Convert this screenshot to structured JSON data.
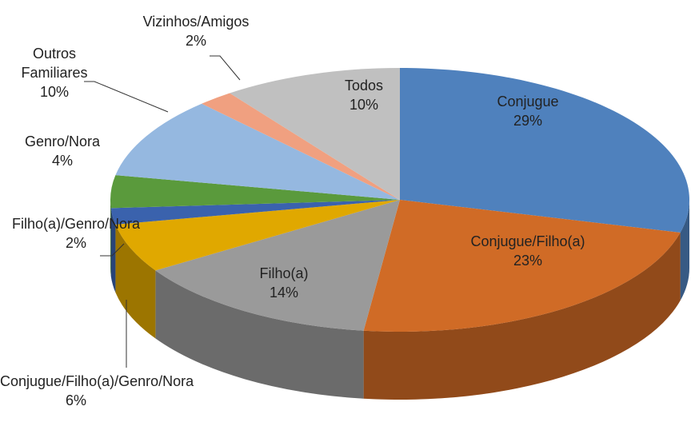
{
  "chart_data": {
    "type": "pie",
    "categories": [
      "Conjugue",
      "Conjugue/Filho(a)",
      "Filho(a)",
      "Conjugue/Filho(a)/Genro/Nora",
      "Filho(a)/Genro/Nora",
      "Genro/Nora",
      "Outros Familiares",
      "Vizinhos/Amigos",
      "Todos"
    ],
    "values": [
      29,
      23,
      14,
      6,
      2,
      4,
      10,
      2,
      10
    ],
    "value_labels": [
      "29%",
      "23%",
      "14%",
      "6%",
      "2%",
      "4%",
      "10%",
      "2%",
      "10%"
    ],
    "colors": [
      "#4f81bd",
      "#d06b26",
      "#9a9a9a",
      "#e0a800",
      "#3a62ad",
      "#5a9a3c",
      "#95b8e0",
      "#f0a080",
      "#c0c0c0"
    ]
  }
}
